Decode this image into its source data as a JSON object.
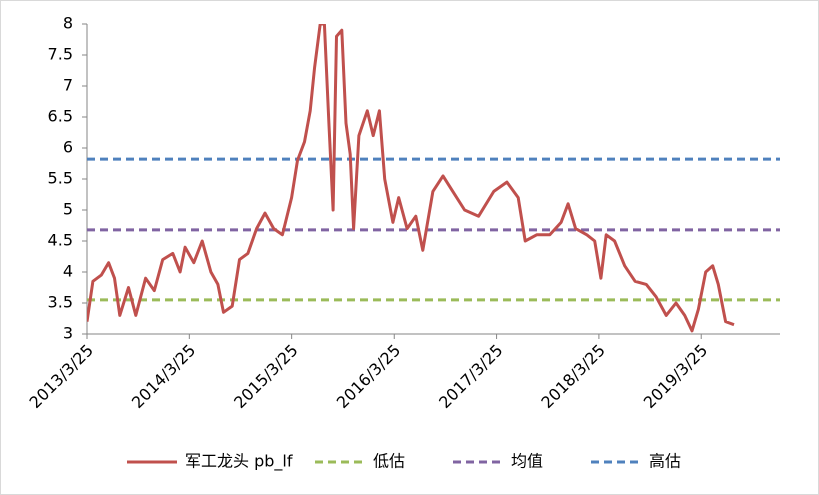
{
  "chart_data": {
    "type": "line",
    "x": [
      "2013/3/25",
      "2013/4/15",
      "2013/5/15",
      "2013/6/10",
      "2013/7/1",
      "2013/7/20",
      "2013/8/20",
      "2013/9/15",
      "2013/10/20",
      "2013/11/20",
      "2013/12/20",
      "2014/1/25",
      "2014/2/20",
      "2014/3/10",
      "2014/4/10",
      "2014/5/10",
      "2014/6/10",
      "2014/7/5",
      "2014/7/25",
      "2014/8/25",
      "2014/9/20",
      "2014/10/20",
      "2014/11/20",
      "2014/12/20",
      "2015/1/20",
      "2015/2/20",
      "2015/3/25",
      "2015/4/15",
      "2015/5/10",
      "2015/5/30",
      "2015/6/15",
      "2015/7/5",
      "2015/7/20",
      "2015/8/5",
      "2015/8/20",
      "2015/9/1",
      "2015/9/20",
      "2015/10/5",
      "2015/10/20",
      "2015/11/1",
      "2015/11/20",
      "2015/12/20",
      "2016/1/10",
      "2016/2/1",
      "2016/2/20",
      "2016/3/20",
      "2016/4/10",
      "2016/5/10",
      "2016/6/10",
      "2016/7/5",
      "2016/8/10",
      "2016/9/15",
      "2016/10/20",
      "2016/12/1",
      "2017/1/20",
      "2017/3/15",
      "2017/5/1",
      "2017/6/10",
      "2017/7/5",
      "2017/8/15",
      "2017/10/1",
      "2017/11/10",
      "2017/12/5",
      "2018/1/1",
      "2018/2/10",
      "2018/3/10",
      "2018/4/1",
      "2018/4/20",
      "2018/5/20",
      "2018/6/25",
      "2018/8/1",
      "2018/9/10",
      "2018/10/15",
      "2018/11/20",
      "2018/12/25",
      "2019/1/25",
      "2019/2/20",
      "2019/3/15",
      "2019/4/10",
      "2019/5/5",
      "2019/5/25",
      "2019/6/20",
      "2019/7/20"
    ],
    "series": [
      {
        "name": "军工龙头 pb_lf",
        "color": "#c0504d",
        "values": [
          3.2,
          3.85,
          3.95,
          4.15,
          3.9,
          3.3,
          3.75,
          3.3,
          3.9,
          3.7,
          4.2,
          4.3,
          4.0,
          4.4,
          4.15,
          4.5,
          4.0,
          3.8,
          3.35,
          3.45,
          4.2,
          4.3,
          4.7,
          4.95,
          4.7,
          4.6,
          5.2,
          5.8,
          6.1,
          6.6,
          7.3,
          8.0,
          8.0,
          6.4,
          5.0,
          7.8,
          7.9,
          6.4,
          5.9,
          4.7,
          6.2,
          6.6,
          6.2,
          6.6,
          5.5,
          4.8,
          5.2,
          4.7,
          4.9,
          4.35,
          5.3,
          5.55,
          5.3,
          5.0,
          4.9,
          5.3,
          5.45,
          5.2,
          4.5,
          4.6,
          4.6,
          4.8,
          5.1,
          4.7,
          4.6,
          4.5,
          3.9,
          4.6,
          4.5,
          4.1,
          3.85,
          3.8,
          3.6,
          3.3,
          3.5,
          3.3,
          3.05,
          3.4,
          4.0,
          4.1,
          3.8,
          3.2,
          3.15
        ]
      }
    ],
    "reference_lines": [
      {
        "name": "低估",
        "color": "#9bbb59",
        "value": 3.55
      },
      {
        "name": "均值",
        "color": "#8064a2",
        "value": 4.68
      },
      {
        "name": "高估",
        "color": "#4f81bd",
        "value": 5.82
      }
    ],
    "xlim": [
      "2013/3/25",
      "2019/12/31"
    ],
    "xticks": [
      "2013/3/25",
      "2014/3/25",
      "2015/3/25",
      "2016/3/25",
      "2017/3/25",
      "2018/3/25",
      "2019/3/25"
    ],
    "ylim": [
      3,
      8
    ],
    "yticks": [
      3,
      3.5,
      4,
      4.5,
      5,
      5.5,
      6,
      6.5,
      7,
      7.5,
      8
    ]
  }
}
